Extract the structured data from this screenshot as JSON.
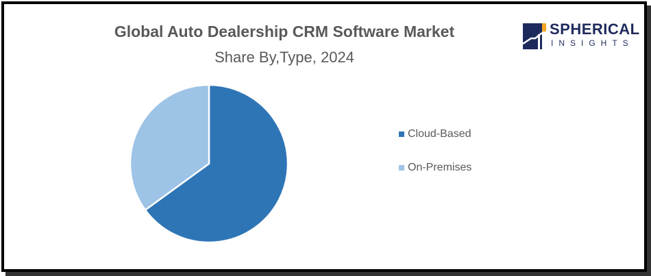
{
  "chart_data": {
    "type": "pie",
    "title": "Global Auto Dealership CRM Software Market",
    "subtitle": "Share By,Type, 2024",
    "categories": [
      "Cloud-Based",
      "On-Premises"
    ],
    "values": [
      65,
      35
    ],
    "colors": [
      "#2e75b6",
      "#9dc3e6"
    ],
    "legend_position": "right"
  },
  "logo": {
    "name": "SPHERICAL",
    "sub": "INSIGHTS",
    "colors": [
      "#1f2a5c",
      "#f5a623"
    ]
  }
}
